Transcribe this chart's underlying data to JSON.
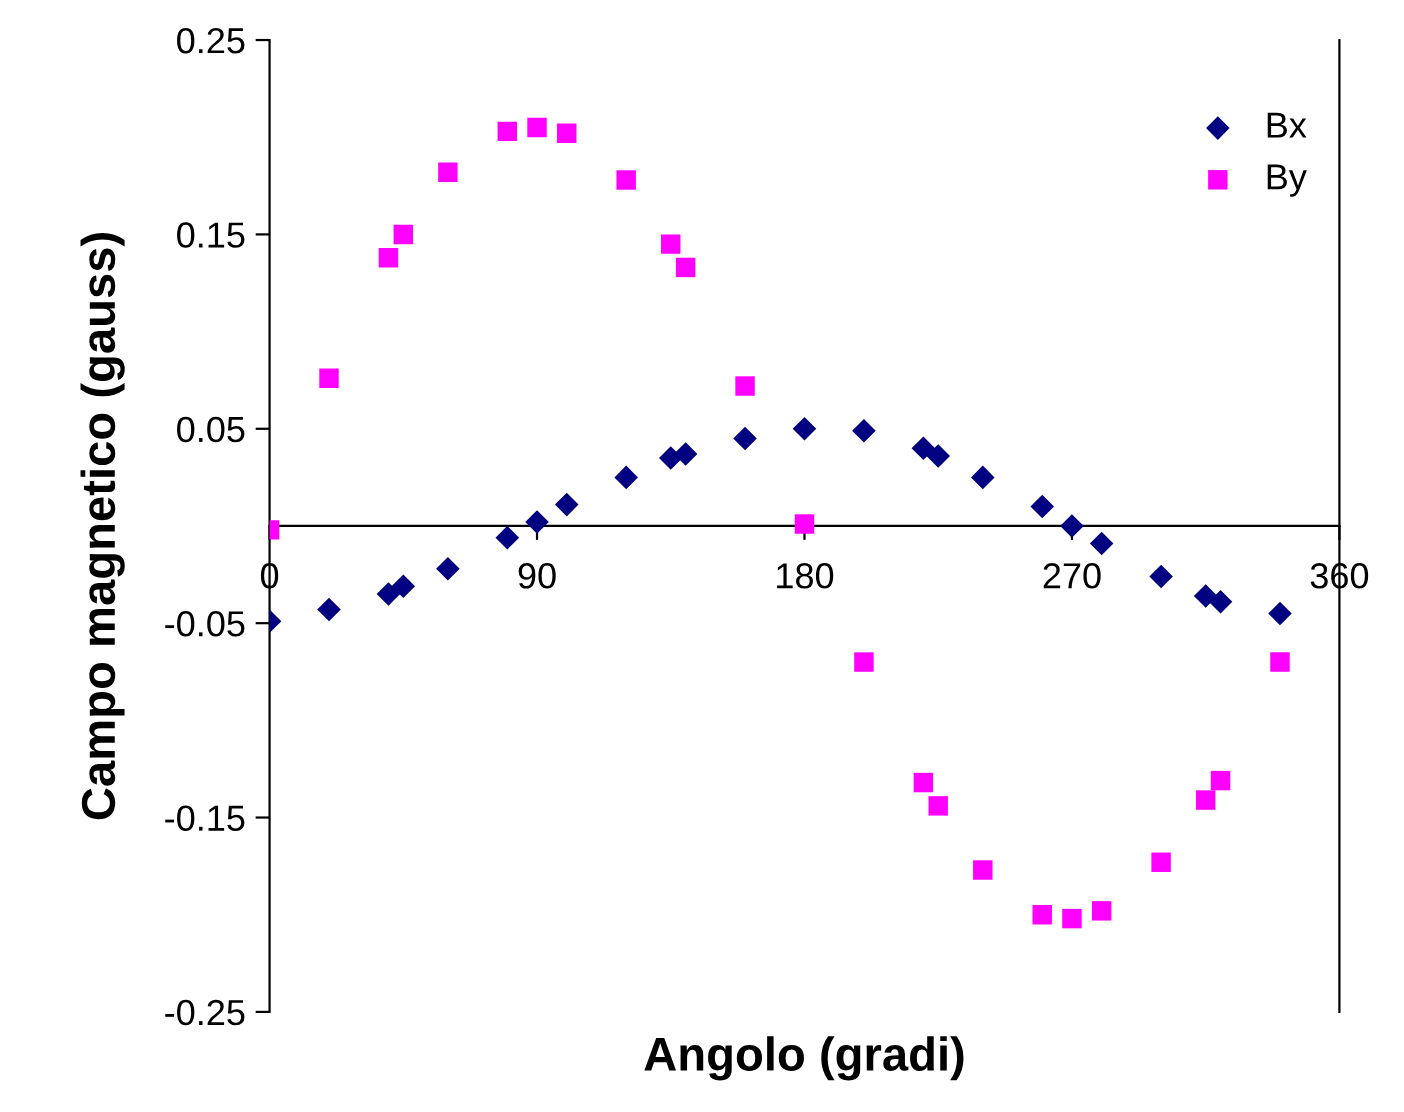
{
  "chart_data": {
    "type": "scatter",
    "xlabel": "Angolo (gradi)",
    "ylabel": "Campo magnetico (gauss)",
    "xlim": [
      0,
      360
    ],
    "ylim": [
      -0.25,
      0.25
    ],
    "xticks": [
      0,
      90,
      180,
      270,
      360
    ],
    "yticks": [
      -0.25,
      -0.15,
      -0.05,
      0.05,
      0.15,
      0.25
    ],
    "grid": false,
    "legend": "top right",
    "series": [
      {
        "name": "Bx",
        "color": "#000080",
        "marker": "diamond",
        "x": [
          0,
          20,
          40,
          45,
          60,
          80,
          90,
          100,
          120,
          135,
          140,
          160,
          180,
          200,
          220,
          225,
          240,
          260,
          270,
          280,
          300,
          315,
          320,
          340
        ],
        "values": [
          -0.049,
          -0.043,
          -0.035,
          -0.031,
          -0.022,
          -0.006,
          0.002,
          0.011,
          0.025,
          0.035,
          0.037,
          0.045,
          0.05,
          0.049,
          0.04,
          0.036,
          0.025,
          0.01,
          0.0,
          -0.009,
          -0.026,
          -0.036,
          -0.039,
          -0.045
        ]
      },
      {
        "name": "By",
        "color": "#ff00ff",
        "marker": "square",
        "x": [
          0,
          20,
          40,
          45,
          60,
          80,
          90,
          100,
          120,
          135,
          140,
          160,
          180,
          200,
          220,
          225,
          240,
          260,
          270,
          280,
          300,
          315,
          320,
          340
        ],
        "values": [
          -0.002,
          0.076,
          0.138,
          0.15,
          0.182,
          0.203,
          0.205,
          0.202,
          0.178,
          0.145,
          0.133,
          0.072,
          0.001,
          -0.07,
          -0.132,
          -0.144,
          -0.177,
          -0.2,
          -0.202,
          -0.198,
          -0.173,
          -0.141,
          -0.131,
          -0.07
        ]
      }
    ]
  }
}
